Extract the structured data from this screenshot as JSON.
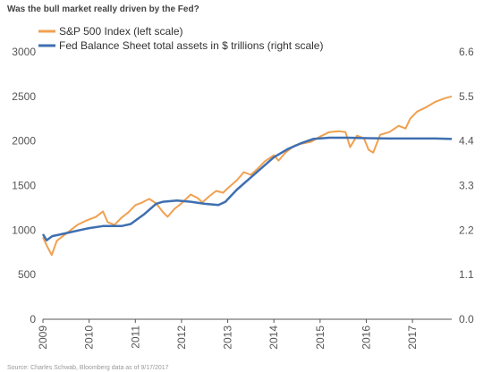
{
  "chart_data": {
    "type": "line",
    "title": "Was the bull market really driven by the Fed?",
    "x_ticks": [
      "2009",
      "2010",
      "2011",
      "2012",
      "2013",
      "2014",
      "2015",
      "2016",
      "2017"
    ],
    "y_left_ticks": [
      "0",
      "500",
      "1000",
      "1500",
      "2000",
      "2500",
      "3000"
    ],
    "y_right_ticks": [
      "0.0",
      "1.1",
      "2.2",
      "3.3",
      "4.4",
      "5.5",
      "6.6"
    ],
    "y_left_lim": [
      0,
      3000
    ],
    "y_right_lim": [
      0,
      6.6
    ],
    "x_lim": [
      2009.0,
      2017.85
    ],
    "grid": false,
    "legend_position": "top-left",
    "source": "Source: Charles Schwab, Bloomberg data as of 9/17/2017",
    "series": [
      {
        "name": "S&P 500 Index (left scale)",
        "axis": "left",
        "color": "#f0a050",
        "points": [
          [
            2009.0,
            920
          ],
          [
            2009.08,
            830
          ],
          [
            2009.19,
            720
          ],
          [
            2009.3,
            880
          ],
          [
            2009.45,
            940
          ],
          [
            2009.6,
            1000
          ],
          [
            2009.75,
            1060
          ],
          [
            2009.95,
            1110
          ],
          [
            2010.15,
            1150
          ],
          [
            2010.3,
            1210
          ],
          [
            2010.4,
            1090
          ],
          [
            2010.55,
            1060
          ],
          [
            2010.7,
            1140
          ],
          [
            2010.85,
            1200
          ],
          [
            2011.0,
            1280
          ],
          [
            2011.15,
            1310
          ],
          [
            2011.3,
            1350
          ],
          [
            2011.45,
            1300
          ],
          [
            2011.6,
            1200
          ],
          [
            2011.7,
            1150
          ],
          [
            2011.85,
            1240
          ],
          [
            2012.0,
            1300
          ],
          [
            2012.2,
            1400
          ],
          [
            2012.35,
            1360
          ],
          [
            2012.45,
            1310
          ],
          [
            2012.6,
            1380
          ],
          [
            2012.75,
            1440
          ],
          [
            2012.9,
            1420
          ],
          [
            2013.0,
            1470
          ],
          [
            2013.2,
            1560
          ],
          [
            2013.35,
            1650
          ],
          [
            2013.5,
            1620
          ],
          [
            2013.65,
            1690
          ],
          [
            2013.8,
            1770
          ],
          [
            2014.0,
            1840
          ],
          [
            2014.1,
            1780
          ],
          [
            2014.25,
            1870
          ],
          [
            2014.45,
            1950
          ],
          [
            2014.6,
            1970
          ],
          [
            2014.8,
            1990
          ],
          [
            2015.0,
            2050
          ],
          [
            2015.2,
            2100
          ],
          [
            2015.4,
            2110
          ],
          [
            2015.55,
            2100
          ],
          [
            2015.65,
            1930
          ],
          [
            2015.8,
            2060
          ],
          [
            2015.95,
            2030
          ],
          [
            2016.05,
            1900
          ],
          [
            2016.15,
            1870
          ],
          [
            2016.3,
            2070
          ],
          [
            2016.5,
            2100
          ],
          [
            2016.7,
            2170
          ],
          [
            2016.85,
            2140
          ],
          [
            2016.95,
            2250
          ],
          [
            2017.1,
            2330
          ],
          [
            2017.3,
            2380
          ],
          [
            2017.5,
            2440
          ],
          [
            2017.7,
            2480
          ],
          [
            2017.85,
            2500
          ]
        ]
      },
      {
        "name": "Fed Balance Sheet total assets in $ trillions (right scale)",
        "axis": "right",
        "color": "#3f6fb0",
        "points": [
          [
            2009.0,
            2.1
          ],
          [
            2009.08,
            1.95
          ],
          [
            2009.2,
            2.05
          ],
          [
            2009.4,
            2.1
          ],
          [
            2009.6,
            2.15
          ],
          [
            2009.8,
            2.2
          ],
          [
            2010.0,
            2.25
          ],
          [
            2010.3,
            2.3
          ],
          [
            2010.7,
            2.3
          ],
          [
            2010.9,
            2.35
          ],
          [
            2011.2,
            2.6
          ],
          [
            2011.45,
            2.85
          ],
          [
            2011.6,
            2.9
          ],
          [
            2011.9,
            2.93
          ],
          [
            2012.2,
            2.9
          ],
          [
            2012.5,
            2.85
          ],
          [
            2012.8,
            2.82
          ],
          [
            2012.95,
            2.9
          ],
          [
            2013.2,
            3.2
          ],
          [
            2013.5,
            3.5
          ],
          [
            2013.8,
            3.8
          ],
          [
            2014.0,
            4.0
          ],
          [
            2014.3,
            4.2
          ],
          [
            2014.6,
            4.35
          ],
          [
            2014.85,
            4.45
          ],
          [
            2015.2,
            4.48
          ],
          [
            2015.6,
            4.48
          ],
          [
            2016.0,
            4.47
          ],
          [
            2016.5,
            4.46
          ],
          [
            2017.0,
            4.46
          ],
          [
            2017.5,
            4.46
          ],
          [
            2017.85,
            4.45
          ]
        ]
      }
    ]
  }
}
